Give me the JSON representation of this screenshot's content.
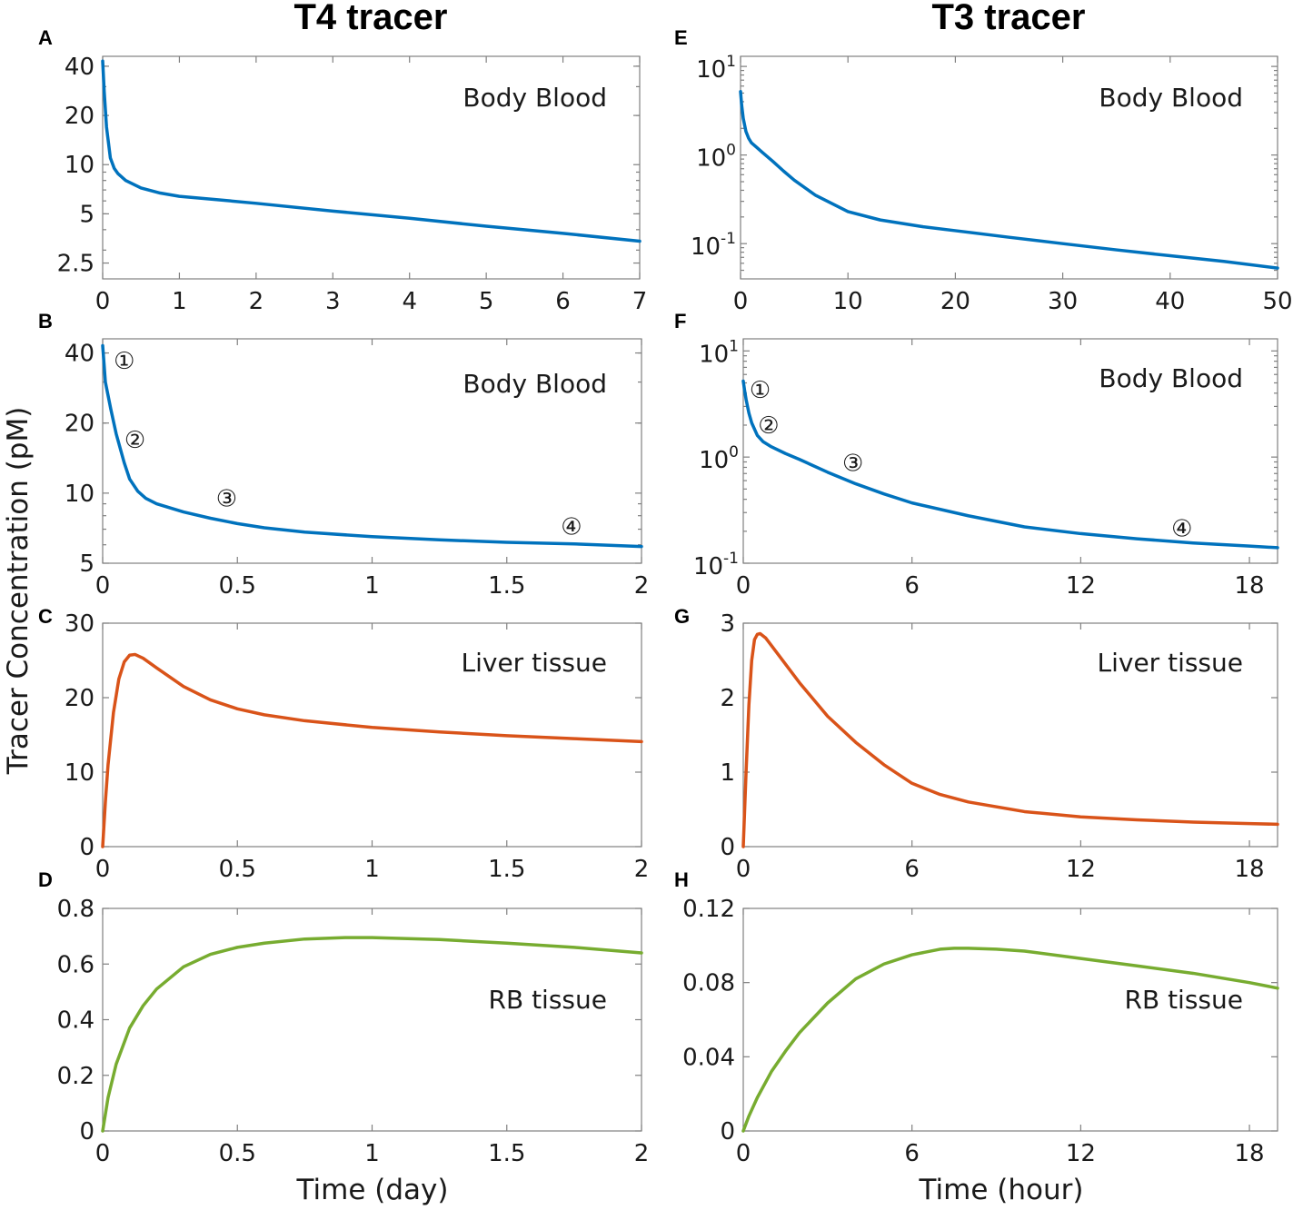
{
  "figure": {
    "column_titles": [
      "T4 tracer",
      "T3 tracer"
    ],
    "ylabel": "Tracer Concentration (pM)",
    "xlabels": [
      "Time (day)",
      "Time (hour)"
    ]
  },
  "colors": {
    "blood": "#0072BD",
    "liver": "#D95319",
    "rb": "#77AC30"
  },
  "chart_data": [
    {
      "id": "A",
      "type": "line",
      "title": "T4 tracer",
      "label": "Body Blood",
      "xscale": "linear",
      "xlim": [
        0,
        7
      ],
      "xticks": [
        0,
        1,
        2,
        3,
        4,
        5,
        6,
        7
      ],
      "xtick_labels": [
        "0",
        "1",
        "2",
        "3",
        "4",
        "5",
        "6",
        "7"
      ],
      "yscale": "log",
      "ylim": [
        2.0,
        46
      ],
      "yticks": [
        2.5,
        5,
        10,
        20,
        40
      ],
      "ytick_labels": [
        "2.5",
        "5",
        "10",
        "20",
        "40"
      ],
      "color": "blood",
      "x": [
        0,
        0.02,
        0.05,
        0.1,
        0.15,
        0.2,
        0.3,
        0.5,
        0.75,
        1,
        1.5,
        2,
        3,
        4,
        5,
        6,
        7
      ],
      "y": [
        43,
        28,
        17,
        11,
        9.5,
        8.8,
        8.0,
        7.2,
        6.7,
        6.4,
        6.1,
        5.8,
        5.2,
        4.7,
        4.2,
        3.8,
        3.4
      ]
    },
    {
      "id": "B",
      "type": "line",
      "label": "Body Blood",
      "xscale": "linear",
      "xlim": [
        0,
        2
      ],
      "xticks": [
        0,
        0.5,
        1,
        1.5,
        2
      ],
      "xtick_labels": [
        "0",
        "0.5",
        "1",
        "1.5",
        "2"
      ],
      "yscale": "log",
      "ylim": [
        5,
        46
      ],
      "yticks": [
        5,
        10,
        20,
        40
      ],
      "ytick_labels": [
        "5",
        "10",
        "20",
        "40"
      ],
      "color": "blood",
      "x": [
        0,
        0.005,
        0.01,
        0.03,
        0.05,
        0.08,
        0.1,
        0.13,
        0.16,
        0.2,
        0.3,
        0.4,
        0.5,
        0.6,
        0.75,
        1,
        1.25,
        1.5,
        1.75,
        2
      ],
      "y": [
        43,
        36,
        30,
        23,
        18,
        13.5,
        11.5,
        10.2,
        9.5,
        9.0,
        8.3,
        7.8,
        7.4,
        7.1,
        6.8,
        6.5,
        6.3,
        6.15,
        6.05,
        5.9
      ],
      "annotations": [
        {
          "text": "①",
          "x": 0.08,
          "y": 37
        },
        {
          "text": "②",
          "x": 0.12,
          "y": 17
        },
        {
          "text": "③",
          "x": 0.46,
          "y": 9.5
        },
        {
          "text": "④",
          "x": 1.74,
          "y": 7.2
        }
      ]
    },
    {
      "id": "C",
      "type": "line",
      "label": "Liver tissue",
      "xscale": "linear",
      "xlim": [
        0,
        2
      ],
      "xticks": [
        0,
        0.5,
        1,
        1.5,
        2
      ],
      "xtick_labels": [
        "0",
        "0.5",
        "1",
        "1.5",
        "2"
      ],
      "yscale": "linear",
      "ylim": [
        0,
        30
      ],
      "yticks": [
        0,
        10,
        20,
        30
      ],
      "ytick_labels": [
        "0",
        "10",
        "20",
        "30"
      ],
      "color": "liver",
      "x": [
        0,
        0.01,
        0.02,
        0.04,
        0.06,
        0.08,
        0.1,
        0.12,
        0.15,
        0.2,
        0.3,
        0.4,
        0.5,
        0.6,
        0.75,
        1,
        1.25,
        1.5,
        1.75,
        2
      ],
      "y": [
        0,
        6,
        11,
        18,
        22.5,
        24.8,
        25.7,
        25.8,
        25.3,
        24.0,
        21.5,
        19.7,
        18.5,
        17.7,
        16.9,
        16.0,
        15.4,
        14.9,
        14.5,
        14.1
      ]
    },
    {
      "id": "D",
      "type": "line",
      "label": "RB tissue",
      "xscale": "linear",
      "xlim": [
        0,
        2
      ],
      "xticks": [
        0,
        0.5,
        1,
        1.5,
        2
      ],
      "xtick_labels": [
        "0",
        "0.5",
        "1",
        "1.5",
        "2"
      ],
      "yscale": "linear",
      "ylim": [
        0,
        0.8
      ],
      "yticks": [
        0,
        0.2,
        0.4,
        0.6,
        0.8
      ],
      "ytick_labels": [
        "0",
        "0.2",
        "0.4",
        "0.6",
        "0.8"
      ],
      "color": "rb",
      "x": [
        0,
        0.02,
        0.05,
        0.1,
        0.15,
        0.2,
        0.3,
        0.4,
        0.5,
        0.6,
        0.75,
        0.9,
        1,
        1.25,
        1.5,
        1.75,
        2
      ],
      "y": [
        0,
        0.12,
        0.24,
        0.37,
        0.45,
        0.51,
        0.59,
        0.635,
        0.66,
        0.675,
        0.69,
        0.695,
        0.695,
        0.688,
        0.675,
        0.66,
        0.64
      ]
    },
    {
      "id": "E",
      "type": "line",
      "title": "T3 tracer",
      "label": "Body Blood",
      "xscale": "linear",
      "xlim": [
        0,
        50
      ],
      "xticks": [
        0,
        10,
        20,
        30,
        40,
        50
      ],
      "xtick_labels": [
        "0",
        "10",
        "20",
        "30",
        "40",
        "50"
      ],
      "yscale": "log",
      "ylim": [
        0.04,
        13
      ],
      "yticks": [
        0.1,
        1,
        10
      ],
      "ytick_labels": [
        [
          "10",
          "-1"
        ],
        [
          "10",
          "0"
        ],
        [
          "10",
          "1"
        ]
      ],
      "color": "blood",
      "x": [
        0,
        0.1,
        0.25,
        0.5,
        0.75,
        1,
        1.5,
        2,
        3,
        4,
        5,
        7,
        10,
        13,
        17,
        20,
        25,
        30,
        35,
        40,
        45,
        50
      ],
      "y": [
        5.2,
        3.7,
        2.6,
        1.85,
        1.55,
        1.38,
        1.22,
        1.08,
        0.85,
        0.66,
        0.52,
        0.35,
        0.23,
        0.185,
        0.155,
        0.14,
        0.118,
        0.1,
        0.085,
        0.073,
        0.063,
        0.053
      ]
    },
    {
      "id": "F",
      "type": "line",
      "label": "Body Blood",
      "xscale": "linear",
      "xlim": [
        0,
        19
      ],
      "xticks": [
        0,
        6,
        12,
        18
      ],
      "xtick_labels": [
        "0",
        "6",
        "12",
        "18"
      ],
      "yscale": "log",
      "ylim": [
        0.1,
        13
      ],
      "yticks": [
        0.1,
        1,
        10
      ],
      "ytick_labels": [
        [
          "10",
          "-1"
        ],
        [
          "10",
          "0"
        ],
        [
          "10",
          "1"
        ]
      ],
      "color": "blood",
      "x": [
        0,
        0.05,
        0.1,
        0.2,
        0.3,
        0.5,
        0.7,
        1,
        1.5,
        2,
        3,
        4,
        5,
        6,
        8,
        10,
        12,
        14,
        16,
        18,
        19
      ],
      "y": [
        5.2,
        4.2,
        3.5,
        2.6,
        2.1,
        1.6,
        1.4,
        1.25,
        1.08,
        0.95,
        0.72,
        0.56,
        0.45,
        0.37,
        0.28,
        0.22,
        0.19,
        0.17,
        0.155,
        0.145,
        0.14
      ],
      "annotations": [
        {
          "text": "①",
          "x": 0.6,
          "y": 4.3
        },
        {
          "text": "②",
          "x": 0.9,
          "y": 2.0
        },
        {
          "text": "③",
          "x": 3.9,
          "y": 0.88
        },
        {
          "text": "④",
          "x": 15.6,
          "y": 0.213
        }
      ]
    },
    {
      "id": "G",
      "type": "line",
      "label": "Liver tissue",
      "xscale": "linear",
      "xlim": [
        0,
        19
      ],
      "xticks": [
        0,
        6,
        12,
        18
      ],
      "xtick_labels": [
        "0",
        "6",
        "12",
        "18"
      ],
      "yscale": "linear",
      "ylim": [
        0,
        3
      ],
      "yticks": [
        0,
        1,
        2,
        3
      ],
      "ytick_labels": [
        "0",
        "1",
        "2",
        "3"
      ],
      "color": "liver",
      "x": [
        0,
        0.1,
        0.2,
        0.3,
        0.4,
        0.5,
        0.6,
        0.8,
        1,
        1.5,
        2,
        3,
        4,
        5,
        6,
        7,
        8,
        10,
        12,
        14,
        16,
        18,
        19
      ],
      "y": [
        0,
        1.0,
        1.9,
        2.5,
        2.78,
        2.85,
        2.86,
        2.8,
        2.7,
        2.45,
        2.2,
        1.75,
        1.4,
        1.1,
        0.85,
        0.7,
        0.6,
        0.47,
        0.4,
        0.36,
        0.33,
        0.31,
        0.3
      ]
    },
    {
      "id": "H",
      "type": "line",
      "label": "RB tissue",
      "xscale": "linear",
      "xlim": [
        0,
        19
      ],
      "xticks": [
        0,
        6,
        12,
        18
      ],
      "xtick_labels": [
        "0",
        "6",
        "12",
        "18"
      ],
      "yscale": "linear",
      "ylim": [
        0,
        0.12
      ],
      "yticks": [
        0,
        0.04,
        0.08,
        0.12
      ],
      "ytick_labels": [
        "0",
        "0.04",
        "0.08",
        "0.12"
      ],
      "color": "rb",
      "x": [
        0,
        0.2,
        0.5,
        1,
        1.5,
        2,
        3,
        4,
        5,
        6,
        7,
        7.5,
        8,
        9,
        10,
        12,
        14,
        16,
        18,
        19
      ],
      "y": [
        0,
        0.008,
        0.018,
        0.032,
        0.043,
        0.053,
        0.069,
        0.082,
        0.09,
        0.095,
        0.098,
        0.0985,
        0.0985,
        0.098,
        0.097,
        0.093,
        0.089,
        0.085,
        0.08,
        0.077
      ]
    }
  ]
}
